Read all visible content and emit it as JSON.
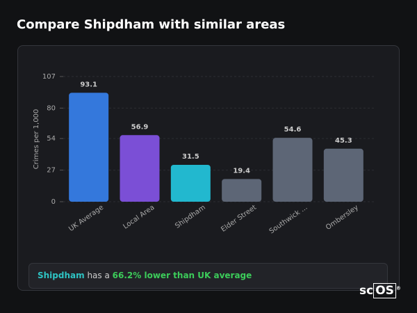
{
  "header": {
    "title": "Compare Shipdham with similar areas"
  },
  "chart_data": {
    "type": "bar",
    "y_label": "Crimes per 1,000",
    "categories": [
      "UK Average",
      "Local Area",
      "Shipdham",
      "Elder Street",
      "Southwick ...",
      "Ombersley"
    ],
    "values": [
      93.1,
      56.9,
      31.5,
      19.4,
      54.6,
      45.3
    ],
    "colors": [
      "#3478dc",
      "#7b4fd6",
      "#22b8cf",
      "#5d6676",
      "#5d6676",
      "#5d6676"
    ],
    "ylim": [
      0,
      107
    ],
    "yticks": [
      0,
      27,
      54,
      80,
      107
    ],
    "grid": true
  },
  "summary": {
    "area": "Shipdham",
    "text": "has a",
    "comparison": "66.2% lower than UK average"
  },
  "logo": {
    "left": "sc",
    "right": "OS",
    "mark": "®"
  }
}
